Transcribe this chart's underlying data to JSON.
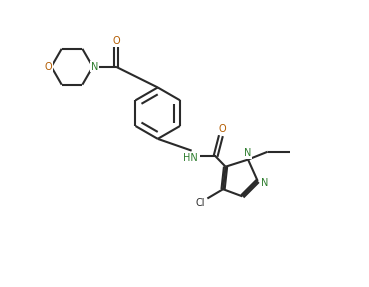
{
  "bg_color": "#ffffff",
  "line_color": "#2a2a2a",
  "N_color": "#2e7d2e",
  "O_color": "#b35c00",
  "line_width": 1.5,
  "fig_width": 3.69,
  "fig_height": 2.87,
  "xlim": [
    0,
    10
  ],
  "ylim": [
    0,
    8
  ]
}
